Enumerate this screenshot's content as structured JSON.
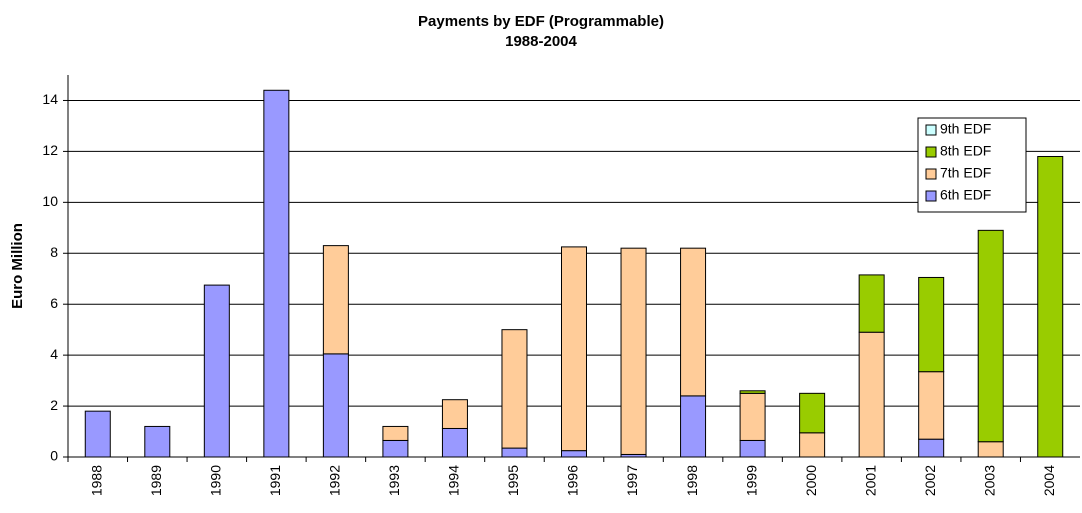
{
  "chart_data": {
    "type": "stacked_bar",
    "title": "Payments by EDF (Programmable)",
    "subtitle": "1988-2004",
    "y_label": "Euro Million",
    "categories": [
      "1988",
      "1989",
      "1990",
      "1991",
      "1992",
      "1993",
      "1994",
      "1995",
      "1996",
      "1997",
      "1998",
      "1999",
      "2000",
      "2001",
      "2002",
      "2003",
      "2004"
    ],
    "series": [
      {
        "name": "6th EDF",
        "color": "#9999ff",
        "values": [
          1.8,
          1.2,
          6.75,
          14.4,
          4.05,
          0.65,
          1.12,
          0.35,
          0.25,
          0.1,
          2.4,
          0.65,
          0,
          0,
          0.7,
          0,
          0
        ]
      },
      {
        "name": "7th EDF",
        "color": "#ffcc99",
        "values": [
          0,
          0,
          0,
          0,
          4.25,
          0.55,
          1.13,
          4.65,
          8.0,
          8.1,
          5.8,
          1.85,
          0.95,
          4.9,
          2.65,
          0.6,
          0
        ]
      },
      {
        "name": "8th EDF",
        "color": "#99cc00",
        "values": [
          0,
          0,
          0,
          0,
          0,
          0,
          0,
          0,
          0,
          0,
          0,
          0.1,
          1.55,
          2.25,
          3.7,
          8.3,
          11.8
        ]
      },
      {
        "name": "9th EDF",
        "color": "#ccffff",
        "values": [
          0,
          0,
          0,
          0,
          0,
          0,
          0,
          0,
          0,
          0,
          0,
          0,
          0,
          0,
          0,
          0,
          0
        ]
      }
    ],
    "ylim": [
      0,
      15
    ],
    "yticks": [
      0,
      2,
      4,
      6,
      8,
      10,
      12,
      14
    ],
    "grid": true,
    "legend": "upper right"
  }
}
